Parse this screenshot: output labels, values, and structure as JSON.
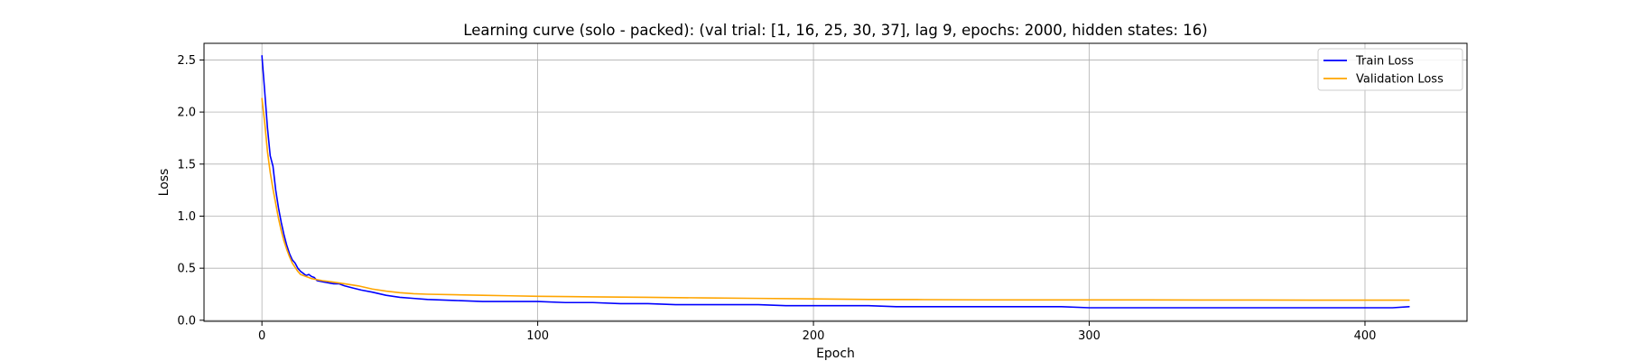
{
  "chart_data": {
    "type": "line",
    "title": "Learning curve (solo - packed): (val trial: [1, 16, 25, 30, 37], lag 9, epochs: 2000, hidden states: 16)",
    "xlabel": "Epoch",
    "ylabel": "Loss",
    "xlim": [
      -21,
      437
    ],
    "ylim": [
      -0.01,
      2.66
    ],
    "xticks": [
      0,
      100,
      200,
      300,
      400
    ],
    "xtick_labels": [
      "0",
      "100",
      "200",
      "300",
      "400"
    ],
    "yticks": [
      0.0,
      0.5,
      1.0,
      1.5,
      2.0,
      2.5
    ],
    "ytick_labels": [
      "0.0",
      "0.5",
      "1.0",
      "1.5",
      "2.0",
      "2.5"
    ],
    "grid": true,
    "legend_position": "top-right",
    "series": [
      {
        "name": "Train Loss",
        "color": "#0000ff",
        "x": [
          0,
          1,
          2,
          3,
          4,
          5,
          6,
          7,
          8,
          9,
          10,
          11,
          12,
          13,
          14,
          15,
          16,
          17,
          18,
          19,
          20,
          22,
          24,
          26,
          28,
          30,
          33,
          36,
          40,
          45,
          50,
          55,
          60,
          70,
          80,
          90,
          100,
          110,
          120,
          130,
          140,
          150,
          160,
          170,
          180,
          190,
          200,
          210,
          220,
          230,
          240,
          250,
          260,
          270,
          280,
          290,
          300,
          310,
          320,
          330,
          340,
          350,
          360,
          370,
          380,
          390,
          400,
          410,
          416
        ],
        "y": [
          2.54,
          2.2,
          1.85,
          1.58,
          1.48,
          1.25,
          1.08,
          0.94,
          0.82,
          0.72,
          0.64,
          0.58,
          0.55,
          0.5,
          0.47,
          0.45,
          0.43,
          0.44,
          0.42,
          0.41,
          0.38,
          0.37,
          0.36,
          0.35,
          0.35,
          0.33,
          0.31,
          0.29,
          0.27,
          0.24,
          0.22,
          0.21,
          0.2,
          0.19,
          0.18,
          0.18,
          0.18,
          0.17,
          0.17,
          0.16,
          0.16,
          0.15,
          0.15,
          0.15,
          0.15,
          0.14,
          0.14,
          0.14,
          0.14,
          0.13,
          0.13,
          0.13,
          0.13,
          0.13,
          0.13,
          0.13,
          0.12,
          0.12,
          0.12,
          0.12,
          0.12,
          0.12,
          0.12,
          0.12,
          0.12,
          0.12,
          0.12,
          0.12,
          0.13
        ]
      },
      {
        "name": "Validation Loss",
        "color": "#ffa500",
        "x": [
          0,
          1,
          2,
          3,
          4,
          5,
          6,
          7,
          8,
          9,
          10,
          11,
          12,
          13,
          14,
          15,
          16,
          17,
          18,
          20,
          22,
          25,
          30,
          35,
          40,
          45,
          50,
          55,
          60,
          70,
          80,
          90,
          100,
          120,
          140,
          160,
          180,
          200,
          220,
          240,
          260,
          280,
          300,
          320,
          340,
          360,
          380,
          400,
          416
        ],
        "y": [
          2.13,
          1.9,
          1.62,
          1.42,
          1.26,
          1.12,
          0.98,
          0.86,
          0.76,
          0.68,
          0.61,
          0.55,
          0.51,
          0.47,
          0.44,
          0.43,
          0.42,
          0.41,
          0.4,
          0.39,
          0.38,
          0.37,
          0.35,
          0.33,
          0.3,
          0.28,
          0.265,
          0.255,
          0.25,
          0.245,
          0.24,
          0.235,
          0.23,
          0.225,
          0.22,
          0.215,
          0.21,
          0.205,
          0.2,
          0.198,
          0.196,
          0.195,
          0.195,
          0.195,
          0.194,
          0.194,
          0.193,
          0.193,
          0.193
        ]
      }
    ]
  }
}
